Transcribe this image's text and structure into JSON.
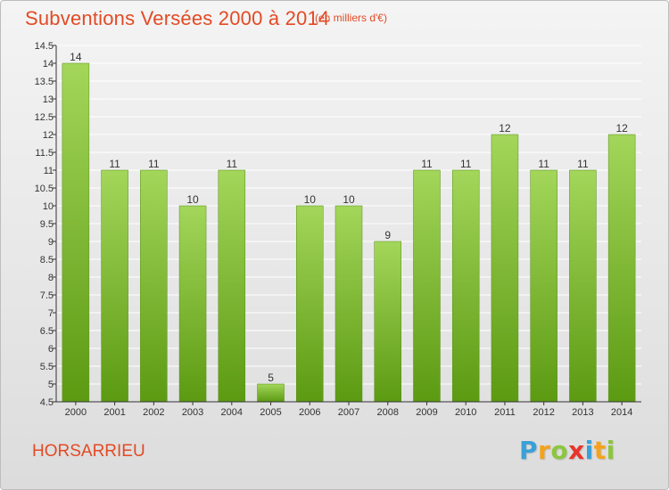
{
  "page": {
    "title": "Subventions Versées 2000 à 2014",
    "subtitle": "(en milliers d'€)",
    "commune": "HORSARRIEU",
    "logo": {
      "text": "Proxiti",
      "letters": [
        {
          "char": "P",
          "color": "#3aa0d8"
        },
        {
          "char": "r",
          "color": "#f5a21b"
        },
        {
          "char": "o",
          "color": "#8cc63f"
        },
        {
          "char": "x",
          "color": "#e8352c"
        },
        {
          "char": "i",
          "color": "#3aa0d8"
        },
        {
          "char": "t",
          "color": "#f5a21b"
        },
        {
          "char": "i",
          "color": "#8cc63f"
        }
      ]
    }
  },
  "colors": {
    "title": "#e34a24",
    "bar_top": "#a3d65a",
    "bar_bottom": "#5c9a12",
    "grid": "#ffffff",
    "axis": "#333333"
  },
  "chart_data": {
    "type": "bar",
    "categories": [
      "2000",
      "2001",
      "2002",
      "2003",
      "2004",
      "2005",
      "2006",
      "2007",
      "2008",
      "2009",
      "2010",
      "2011",
      "2012",
      "2013",
      "2014"
    ],
    "values": [
      14,
      11,
      11,
      10,
      11,
      5,
      10,
      10,
      9,
      11,
      11,
      12,
      11,
      11,
      12
    ],
    "data_labels": [
      "14",
      "11",
      "11",
      "10",
      "11",
      "5",
      "10",
      "10",
      "9",
      "11",
      "11",
      "12",
      "11",
      "11",
      "12"
    ],
    "title": "Subventions Versées 2000 à 2014",
    "ylim": [
      4.5,
      14.5
    ],
    "yticks": [
      4.5,
      5,
      5.5,
      6,
      6.5,
      7,
      7.5,
      8,
      8.5,
      9,
      9.5,
      10,
      10.5,
      11,
      11.5,
      12,
      12.5,
      13,
      13.5,
      14,
      14.5
    ],
    "ytick_labels": [
      "4.5",
      "5",
      "5.5",
      "6",
      "6.5",
      "7",
      "7.5",
      "8",
      "8.5",
      "9",
      "9.5",
      "10",
      "10.5",
      "11",
      "11.5",
      "12",
      "12.5",
      "13",
      "13.5",
      "14",
      "14.5"
    ],
    "grid": true
  }
}
